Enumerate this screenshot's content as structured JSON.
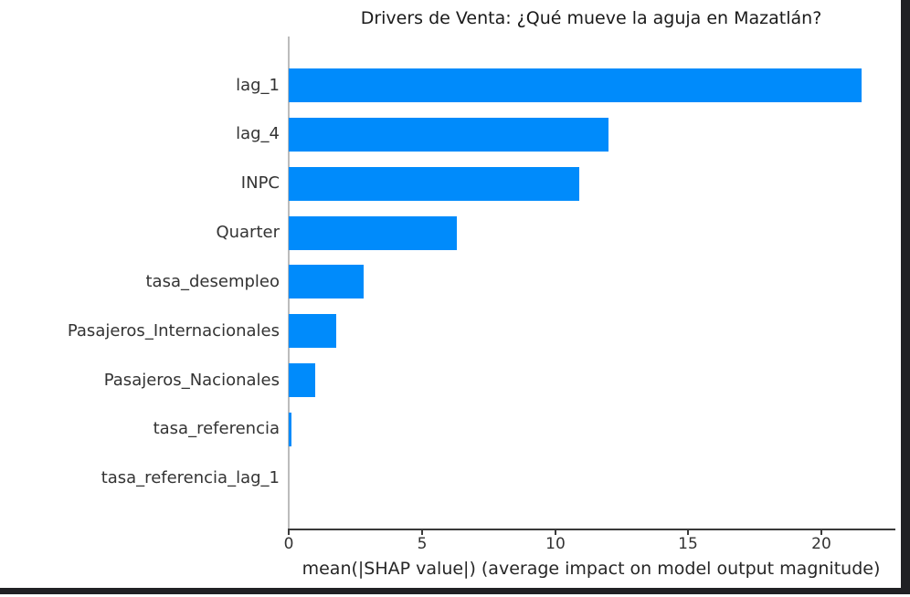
{
  "chart_data": {
    "type": "bar",
    "orientation": "horizontal",
    "title": "Drivers de Venta: ¿Qué mueve la aguja en Mazatlán?",
    "xlabel": "mean(|SHAP value|) (average impact on model output magnitude)",
    "categories": [
      "lag_1",
      "lag_4",
      "INPC",
      "Quarter",
      "tasa_desempleo",
      "Pasajeros_Internacionales",
      "Pasajeros_Nacionales",
      "tasa_referencia",
      "tasa_referencia_lag_1"
    ],
    "values": [
      21.5,
      12.0,
      10.9,
      6.3,
      2.8,
      1.8,
      1.0,
      0.1,
      0.0
    ],
    "x_ticks": [
      0,
      5,
      10,
      15,
      20
    ],
    "xlim": [
      0,
      23
    ],
    "grid": false,
    "legend": null,
    "bar_color": "#008bfb",
    "axis_text_color": "#333333",
    "title_color": "#1a1a1a",
    "window_border_color": "#202124"
  }
}
